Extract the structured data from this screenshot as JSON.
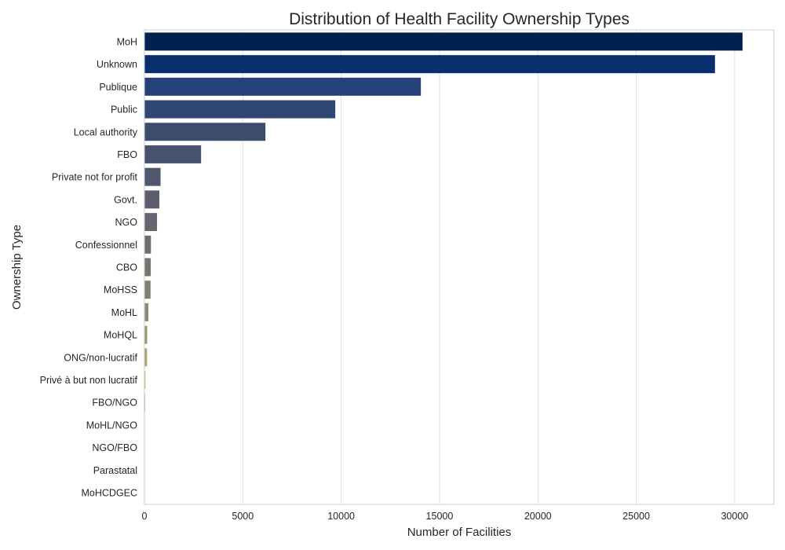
{
  "chart_data": {
    "type": "bar",
    "orientation": "horizontal",
    "title": "Distribution of Health Facility Ownership Types",
    "xlabel": "Number of Facilities",
    "ylabel": "Ownership Type",
    "xlim": [
      0,
      32000
    ],
    "xticks": [
      0,
      5000,
      10000,
      15000,
      20000,
      25000,
      30000
    ],
    "grid": true,
    "grid_axis": "x",
    "palette": "cividis",
    "categories": [
      "MoH",
      "Unknown",
      "Publique",
      "Public",
      "Local authority",
      "FBO",
      "Private not for profit",
      "Govt.",
      "NGO",
      "Confessionnel",
      "CBO",
      "MoHSS",
      "MoHL",
      "MoHQL",
      "ONG/non-lucratif",
      "Privé à but non lucratif",
      "FBO/NGO",
      "MoHL/NGO",
      "NGO/FBO",
      "Parastatal",
      "MoHCDGEC"
    ],
    "values": [
      30400,
      29000,
      14050,
      9700,
      6150,
      2880,
      820,
      760,
      640,
      330,
      320,
      310,
      200,
      140,
      130,
      50,
      40,
      10,
      8,
      6,
      4
    ],
    "colors": [
      "#00224e",
      "#0a2f6e",
      "#26407a",
      "#2f4772",
      "#3c4c6c",
      "#475270",
      "#50566e",
      "#5a5e6e",
      "#65656e",
      "#6e6c70",
      "#77746f",
      "#827e72",
      "#8f8a74",
      "#9c9574",
      "#aaa274",
      "#b8ae70",
      "#c6bb6a",
      "#d4c963",
      "#e2d659",
      "#f0e44c",
      "#fee838"
    ]
  }
}
